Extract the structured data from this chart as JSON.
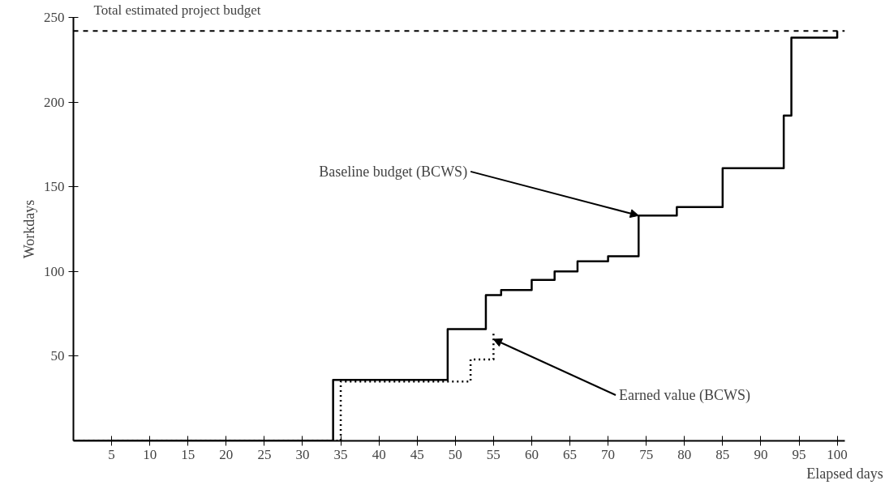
{
  "chart_data": {
    "type": "step",
    "xlabel": "Elapsed days",
    "ylabel": "Workdays",
    "xlim": [
      0,
      101
    ],
    "ylim": [
      0,
      250
    ],
    "xticks": [
      5,
      10,
      15,
      20,
      25,
      30,
      35,
      40,
      45,
      50,
      55,
      60,
      65,
      70,
      75,
      80,
      85,
      90,
      95,
      100
    ],
    "yticks": [
      50,
      100,
      150,
      200,
      250
    ],
    "grid": false,
    "series": [
      {
        "color": "#000000",
        "line_style": "solid",
        "x": [
          0,
          34,
          49,
          54,
          56,
          60,
          63,
          66,
          70,
          74,
          79,
          85,
          93,
          94,
          100
        ],
        "values": [
          0,
          36,
          66,
          86,
          89,
          95,
          100,
          106,
          109,
          133,
          138,
          161,
          192,
          238,
          242
        ]
      },
      {
        "color": "#000000",
        "line_style": "dotted",
        "x": [
          0,
          35,
          52,
          55
        ],
        "values": [
          0,
          35,
          48,
          64
        ]
      }
    ],
    "ref_lines": [
      {
        "axis": "y",
        "value": 242,
        "label": "Total estimated project budget",
        "line_style": "dashed",
        "color": "#000000"
      }
    ],
    "annotations": [
      {
        "text": "Baseline budget (BCWS)",
        "x": 74,
        "y": 133
      },
      {
        "text": "Earned value (BCWS)",
        "x": 55,
        "y": 60
      }
    ]
  }
}
